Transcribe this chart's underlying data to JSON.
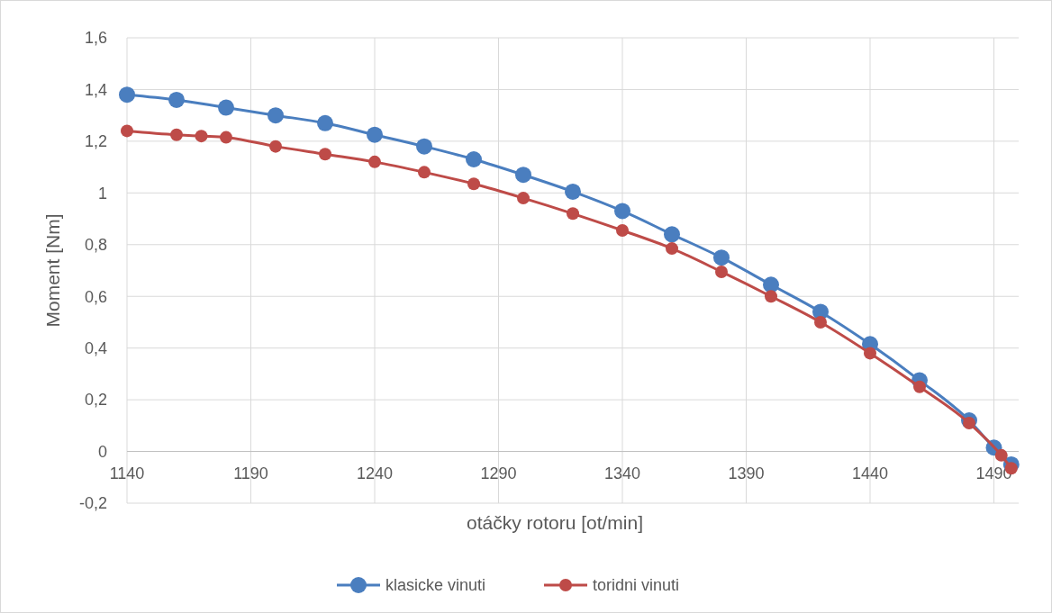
{
  "chart_data": {
    "type": "line",
    "xlabel": "otáčky rotoru [ot/min]",
    "ylabel": "Moment [Nm]",
    "xlim": [
      1140,
      1500
    ],
    "xticks": [
      1140,
      1190,
      1240,
      1290,
      1340,
      1390,
      1440,
      1490
    ],
    "ylim": [
      -0.2,
      1.6
    ],
    "yticks": [
      {
        "value": -0.2,
        "label": "-0,2"
      },
      0,
      {
        "value": 0.2,
        "label": "0,2"
      },
      {
        "value": 0.4,
        "label": "0,4"
      },
      {
        "value": 0.6,
        "label": "0,6"
      },
      {
        "value": 0.8,
        "label": "0,8"
      },
      1,
      {
        "value": 1.2,
        "label": "1,2"
      },
      {
        "value": 1.4,
        "label": "1,4"
      },
      {
        "value": 1.6,
        "label": "1,6"
      }
    ],
    "grid": true,
    "legend": "bottom",
    "marker": "circle",
    "line_style": "solid",
    "series": [
      {
        "name": "klasicke vinuti",
        "color": "#4a7ebf",
        "x": [
          1140,
          1160,
          1180,
          1200,
          1220,
          1240,
          1260,
          1280,
          1300,
          1320,
          1340,
          1360,
          1380,
          1400,
          1420,
          1440,
          1460,
          1480,
          1490,
          1497
        ],
        "values": [
          1.38,
          1.36,
          1.33,
          1.3,
          1.27,
          1.225,
          1.18,
          1.13,
          1.07,
          1.005,
          0.93,
          0.84,
          0.75,
          0.645,
          0.54,
          0.415,
          0.275,
          0.12,
          0.015,
          -0.05
        ]
      },
      {
        "name": "toridni vinuti",
        "color": "#be4b48",
        "x": [
          1140,
          1160,
          1170,
          1180,
          1200,
          1220,
          1240,
          1260,
          1280,
          1300,
          1320,
          1340,
          1360,
          1380,
          1400,
          1420,
          1440,
          1460,
          1480,
          1493,
          1497
        ],
        "values": [
          1.24,
          1.225,
          1.22,
          1.215,
          1.18,
          1.15,
          1.12,
          1.08,
          1.035,
          0.98,
          0.92,
          0.855,
          0.785,
          0.695,
          0.6,
          0.5,
          0.38,
          0.25,
          0.11,
          -0.015,
          -0.065
        ]
      }
    ]
  }
}
